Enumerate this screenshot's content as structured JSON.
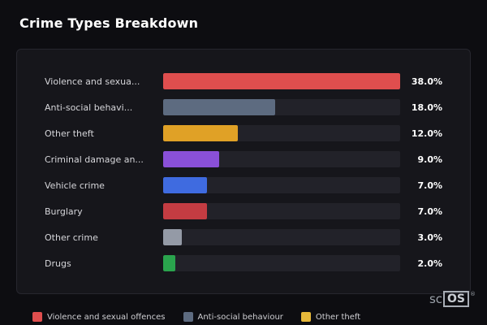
{
  "title": "Crime Types Breakdown",
  "chart_data": {
    "type": "bar",
    "orientation": "horizontal",
    "title": "Crime Types Breakdown",
    "value_format": "percent",
    "xlim": [
      0,
      38
    ],
    "grid": false,
    "legend_position": "bottom",
    "categories": [
      "Violence and sexua...",
      "Anti-social behavi...",
      "Other theft",
      "Criminal damage an...",
      "Vehicle crime",
      "Burglary",
      "Other crime",
      "Drugs"
    ],
    "values": [
      38.0,
      18.0,
      12.0,
      9.0,
      7.0,
      7.0,
      3.0,
      2.0
    ],
    "value_labels": [
      "38.0%",
      "18.0%",
      "12.0%",
      "9.0%",
      "7.0%",
      "7.0%",
      "3.0%",
      "2.0%"
    ],
    "bar_colors": [
      "#df4e4e",
      "#5d6b80",
      "#e0a126",
      "#8a50d8",
      "#3f6be0",
      "#c43c42",
      "#949aa6",
      "#2aa44d"
    ],
    "track_color": "#222229"
  },
  "legend": {
    "items": [
      {
        "label": "Violence and sexual offences",
        "color": "#df4e4e"
      },
      {
        "label": "Anti-social behaviour",
        "color": "#5d6b80"
      },
      {
        "label": "Other theft",
        "color": "#e6b83a"
      }
    ]
  },
  "logo": {
    "prefix": "sc",
    "boxed": "OS",
    "registered": "®"
  }
}
